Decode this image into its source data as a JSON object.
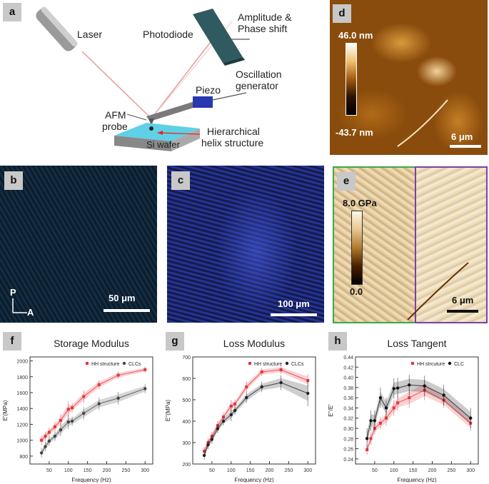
{
  "panel_a": {
    "label": "a",
    "laser": "Laser",
    "photodiode": "Photodiode",
    "amplitude": "Amplitude &",
    "phase": "Phase shift",
    "oscillation1": "Oscillation",
    "oscillation2": "generator",
    "piezo": "Piezo",
    "afm1": "AFM",
    "afm2": "probe",
    "hier1": "Hierarchical",
    "hier2": "helix structure",
    "si": "Si wafer"
  },
  "panel_b": {
    "label": "b",
    "scale": "50 μm",
    "pol_p": "P",
    "pol_a": "A"
  },
  "panel_c": {
    "label": "c",
    "scale": "100 μm"
  },
  "panel_d": {
    "label": "d",
    "cb_max": "46.0 nm",
    "cb_min": "-43.7 nm",
    "scale": "6 μm"
  },
  "panel_e": {
    "label": "e",
    "cb_max": "8.0 GPa",
    "cb_min": "0.0",
    "scale": "6 μm"
  },
  "panel_f": {
    "label": "f"
  },
  "panel_g": {
    "label": "g"
  },
  "panel_h": {
    "label": "h"
  },
  "chart_data": [
    {
      "type": "scatter",
      "title": "Storage Modulus",
      "xlabel": "Frequency (Hz)",
      "ylabel": "E'(MPa)",
      "xlim": [
        0,
        320
      ],
      "ylim": [
        700,
        2050
      ],
      "xticks": [
        50,
        100,
        150,
        200,
        250,
        300
      ],
      "yticks": [
        800,
        1000,
        1200,
        1400,
        1600,
        1800,
        2000
      ],
      "legend": "top-right",
      "series": [
        {
          "name": "HH structure",
          "color": "#e8343a",
          "x": [
            30,
            40,
            50,
            65,
            80,
            100,
            110,
            140,
            180,
            230,
            300
          ],
          "y": [
            1000,
            1050,
            1100,
            1170,
            1250,
            1390,
            1410,
            1550,
            1700,
            1820,
            1890
          ],
          "err": [
            60,
            60,
            60,
            60,
            80,
            100,
            60,
            80,
            60,
            50,
            40
          ]
        },
        {
          "name": "CLCs",
          "color": "#444444",
          "x": [
            30,
            40,
            50,
            65,
            80,
            100,
            110,
            140,
            180,
            230,
            300
          ],
          "y": [
            840,
            920,
            990,
            1050,
            1130,
            1230,
            1240,
            1340,
            1460,
            1530,
            1650
          ],
          "err": [
            60,
            60,
            60,
            60,
            80,
            90,
            60,
            80,
            80,
            80,
            60
          ]
        }
      ]
    },
    {
      "type": "scatter",
      "title": "Loss Modulus",
      "xlabel": "Frequency (Hz)",
      "ylabel": "E''(MPa)",
      "xlim": [
        0,
        320
      ],
      "ylim": [
        200,
        700
      ],
      "xticks": [
        50,
        100,
        150,
        200,
        250,
        300
      ],
      "yticks": [
        200,
        300,
        400,
        500,
        600,
        700
      ],
      "legend": "top-right",
      "series": [
        {
          "name": "HH structure",
          "color": "#e8343a",
          "x": [
            30,
            40,
            50,
            65,
            80,
            100,
            110,
            140,
            180,
            230,
            300
          ],
          "y": [
            260,
            300,
            330,
            380,
            420,
            470,
            480,
            560,
            630,
            640,
            590
          ],
          "err": [
            20,
            20,
            20,
            20,
            20,
            30,
            20,
            25,
            20,
            20,
            30
          ]
        },
        {
          "name": "CLCs",
          "color": "#222222",
          "x": [
            30,
            40,
            50,
            65,
            80,
            100,
            110,
            140,
            180,
            230,
            300
          ],
          "y": [
            240,
            290,
            315,
            365,
            400,
            430,
            450,
            510,
            560,
            580,
            530
          ],
          "err": [
            20,
            20,
            20,
            20,
            20,
            30,
            20,
            25,
            25,
            35,
            60
          ]
        }
      ]
    },
    {
      "type": "scatter",
      "title": "Loss Tangent",
      "xlabel": "Frequency (Hz)",
      "ylabel": "E''/E'",
      "xlim": [
        0,
        320
      ],
      "ylim": [
        0.23,
        0.44
      ],
      "xticks": [
        50,
        100,
        150,
        200,
        250,
        300
      ],
      "yticks": [
        0.24,
        0.26,
        0.28,
        0.3,
        0.32,
        0.34,
        0.36,
        0.38,
        0.4,
        0.42,
        0.44
      ],
      "legend": "top-right",
      "series": [
        {
          "name": "HH strcuture",
          "color": "#e8343a",
          "x": [
            30,
            40,
            50,
            65,
            80,
            100,
            110,
            140,
            180,
            230,
            300
          ],
          "y": [
            0.258,
            0.28,
            0.3,
            0.31,
            0.32,
            0.34,
            0.35,
            0.36,
            0.375,
            0.355,
            0.31
          ],
          "err": [
            0.01,
            0.012,
            0.012,
            0.012,
            0.015,
            0.015,
            0.015,
            0.02,
            0.02,
            0.015,
            0.015
          ]
        },
        {
          "name": "CLC",
          "color": "#111111",
          "x": [
            30,
            40,
            50,
            65,
            80,
            100,
            110,
            140,
            180,
            230,
            300
          ],
          "y": [
            0.28,
            0.315,
            0.315,
            0.36,
            0.34,
            0.378,
            0.379,
            0.385,
            0.383,
            0.365,
            0.32
          ],
          "err": [
            0.02,
            0.02,
            0.02,
            0.02,
            0.02,
            0.02,
            0.02,
            0.02,
            0.02,
            0.02,
            0.02
          ]
        }
      ]
    }
  ]
}
